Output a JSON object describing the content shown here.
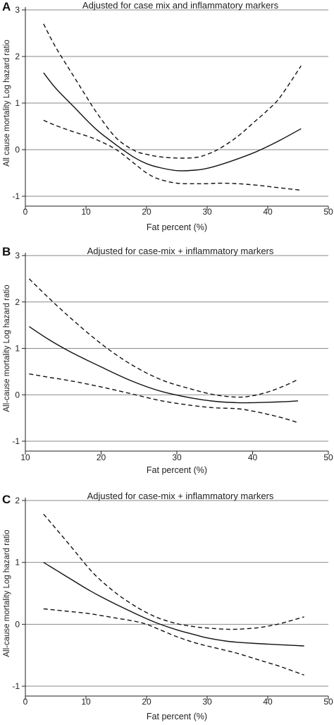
{
  "chart_data": [
    {
      "type": "line",
      "panel": "A",
      "title": "Adjusted for case mix and inflammatory markers",
      "xlabel": "Fat percent (%)",
      "ylabel": "All cause mortality Log hazard ratio",
      "xlim": [
        0,
        50
      ],
      "ylim": [
        -1,
        3
      ],
      "xticks": [
        0,
        10,
        20,
        30,
        40,
        50
      ],
      "yticks": [
        -1,
        0,
        1,
        2,
        3
      ],
      "grid": "horizontal",
      "series": [
        {
          "style": "solid",
          "x": [
            3,
            5,
            8,
            10,
            12,
            15,
            18,
            20,
            22,
            25,
            28,
            30,
            32,
            35,
            38,
            40,
            42,
            45.5
          ],
          "y": [
            1.65,
            1.32,
            0.92,
            0.65,
            0.4,
            0.1,
            -0.17,
            -0.3,
            -0.38,
            -0.45,
            -0.44,
            -0.4,
            -0.33,
            -0.2,
            -0.05,
            0.07,
            0.2,
            0.45
          ]
        },
        {
          "style": "dashed",
          "x": [
            3,
            5,
            8,
            10,
            12,
            15,
            18,
            20,
            22,
            25,
            28,
            30,
            32,
            35,
            38,
            40,
            42,
            45.5
          ],
          "y": [
            2.7,
            2.2,
            1.57,
            1.15,
            0.75,
            0.25,
            -0.02,
            -0.1,
            -0.15,
            -0.18,
            -0.17,
            -0.1,
            0.02,
            0.28,
            0.62,
            0.85,
            1.12,
            1.8
          ]
        },
        {
          "style": "dashed",
          "x": [
            3,
            5,
            8,
            10,
            12,
            15,
            18,
            20,
            22,
            25,
            28,
            30,
            32,
            35,
            38,
            40,
            42,
            45.5
          ],
          "y": [
            0.63,
            0.52,
            0.38,
            0.3,
            0.2,
            0.0,
            -0.3,
            -0.5,
            -0.63,
            -0.72,
            -0.73,
            -0.73,
            -0.72,
            -0.73,
            -0.76,
            -0.79,
            -0.82,
            -0.87
          ]
        }
      ]
    },
    {
      "type": "line",
      "panel": "B",
      "title": "Adjusted for case-mix + inflammatory markers",
      "xlabel": "Fat percent (%)",
      "ylabel": "All-cause mortality Log hazard ratio",
      "xlim": [
        10,
        50
      ],
      "ylim": [
        -1,
        3
      ],
      "xticks": [
        10,
        20,
        30,
        40,
        50
      ],
      "yticks": [
        -1,
        0,
        1,
        2,
        3
      ],
      "grid": "horizontal",
      "series": [
        {
          "style": "solid",
          "x": [
            10.5,
            13,
            16,
            20,
            24,
            28,
            32,
            35,
            38,
            40,
            42,
            44,
            46
          ],
          "y": [
            1.47,
            1.2,
            0.92,
            0.6,
            0.3,
            0.07,
            -0.07,
            -0.14,
            -0.17,
            -0.17,
            -0.16,
            -0.15,
            -0.13
          ]
        },
        {
          "style": "dashed",
          "x": [
            10.5,
            13,
            16,
            20,
            24,
            28,
            32,
            35,
            38,
            40,
            42,
            44,
            46
          ],
          "y": [
            2.5,
            2.1,
            1.65,
            1.1,
            0.65,
            0.32,
            0.12,
            0.0,
            -0.05,
            -0.02,
            0.06,
            0.18,
            0.33
          ]
        },
        {
          "style": "dashed",
          "x": [
            10.5,
            13,
            16,
            20,
            24,
            28,
            32,
            35,
            38,
            40,
            42,
            44,
            46
          ],
          "y": [
            0.45,
            0.38,
            0.3,
            0.17,
            0.02,
            -0.13,
            -0.23,
            -0.28,
            -0.3,
            -0.35,
            -0.42,
            -0.5,
            -0.6
          ]
        }
      ]
    },
    {
      "type": "line",
      "panel": "C",
      "title": "Adjusted for case-mix + inflammatory markers",
      "xlabel": "Fat percent (%)",
      "ylabel": "All-cause mortality Log hazard ratio",
      "xlim": [
        0,
        50
      ],
      "ylim": [
        -1,
        2
      ],
      "xticks": [
        0,
        10,
        20,
        30,
        40,
        50
      ],
      "yticks": [
        -1,
        0,
        1,
        2
      ],
      "grid": "horizontal",
      "series": [
        {
          "style": "solid",
          "x": [
            3,
            5,
            8,
            10,
            12,
            15,
            18,
            20,
            22,
            25,
            28,
            30,
            33,
            35,
            38,
            40,
            42,
            46
          ],
          "y": [
            1.0,
            0.88,
            0.7,
            0.58,
            0.47,
            0.32,
            0.18,
            0.09,
            0.01,
            -0.09,
            -0.17,
            -0.22,
            -0.27,
            -0.29,
            -0.31,
            -0.32,
            -0.33,
            -0.35
          ]
        },
        {
          "style": "dashed",
          "x": [
            3,
            5,
            8,
            10,
            12,
            15,
            18,
            20,
            22,
            25,
            28,
            30,
            33,
            35,
            38,
            40,
            42,
            46
          ],
          "y": [
            1.78,
            1.55,
            1.2,
            0.96,
            0.75,
            0.5,
            0.3,
            0.19,
            0.1,
            0.01,
            -0.04,
            -0.06,
            -0.08,
            -0.08,
            -0.06,
            -0.03,
            0.01,
            0.12
          ]
        },
        {
          "style": "dashed",
          "x": [
            3,
            5,
            8,
            10,
            12,
            15,
            18,
            20,
            22,
            25,
            28,
            30,
            33,
            35,
            38,
            40,
            42,
            46
          ],
          "y": [
            0.25,
            0.23,
            0.2,
            0.18,
            0.15,
            0.1,
            0.05,
            0.0,
            -0.08,
            -0.2,
            -0.3,
            -0.35,
            -0.42,
            -0.47,
            -0.56,
            -0.62,
            -0.68,
            -0.82
          ]
        }
      ]
    }
  ]
}
